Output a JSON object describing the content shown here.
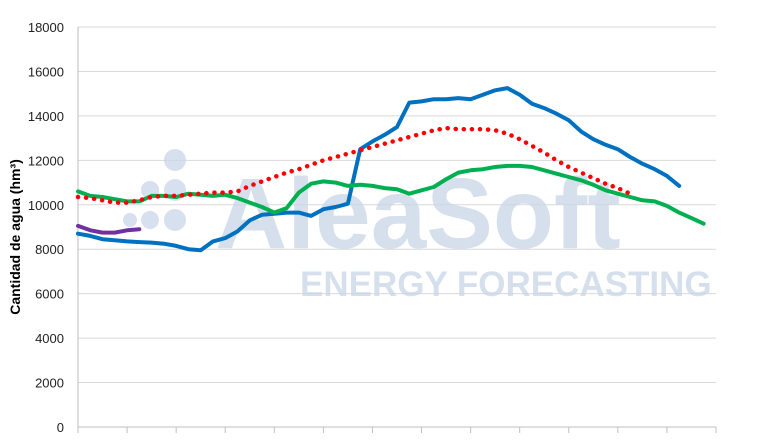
{
  "chart_data": {
    "type": "line",
    "title": "",
    "xlabel": "",
    "ylabel": "Cantidad de agua (hm³)",
    "ylim": [
      0,
      18000
    ],
    "yticks": [
      0,
      2000,
      4000,
      6000,
      8000,
      10000,
      12000,
      14000,
      16000,
      18000
    ],
    "x_points": 53,
    "x_tick_every": 4,
    "grid": "horizontal",
    "legend": "none",
    "watermark": {
      "main": "AleaSoft",
      "sub": "ENERGY FORECASTING"
    },
    "series": [
      {
        "color": "#0070c0",
        "style": "solid",
        "values": [
          8700,
          8600,
          8450,
          8400,
          8350,
          8320,
          8300,
          8250,
          8150,
          8000,
          7950,
          8350,
          8500,
          8800,
          9300,
          9550,
          9600,
          9650,
          9650,
          9500,
          9800,
          9900,
          10050,
          12500,
          12850,
          13150,
          13500,
          14600,
          14650,
          14750,
          14750,
          14800,
          14750,
          14950,
          15150,
          15250,
          14950,
          14550,
          14350,
          14100,
          13800,
          13300,
          12950,
          12700,
          12500,
          12150,
          11850,
          11600,
          11300,
          10850
        ]
      },
      {
        "color": "#00b050",
        "style": "solid",
        "values": [
          10600,
          10400,
          10350,
          10250,
          10150,
          10150,
          10400,
          10400,
          10350,
          10500,
          10450,
          10400,
          10450,
          10300,
          10100,
          9900,
          9650,
          9850,
          10550,
          10950,
          11050,
          11000,
          10850,
          10900,
          10850,
          10750,
          10700,
          10500,
          10650,
          10800,
          11150,
          11450,
          11550,
          11600,
          11700,
          11750,
          11750,
          11700,
          11550,
          11400,
          11250,
          11100,
          10900,
          10650,
          10500,
          10350,
          10200,
          10150,
          9950,
          9650,
          9400,
          9150
        ]
      },
      {
        "color": "#ff0000",
        "style": "dotted",
        "values": [
          10350,
          10300,
          10200,
          10100,
          10100,
          10200,
          10350,
          10400,
          10400,
          10450,
          10500,
          10550,
          10550,
          10600,
          10850,
          11050,
          11250,
          11450,
          11600,
          11800,
          12000,
          12150,
          12300,
          12450,
          12600,
          12750,
          12900,
          13050,
          13200,
          13350,
          13450,
          13400,
          13400,
          13400,
          13350,
          13200,
          12950,
          12650,
          12350,
          12000,
          11700,
          11450,
          11200,
          10950,
          10750,
          10500
        ]
      },
      {
        "color": "#7030a0",
        "style": "solid",
        "values": [
          9050,
          8850,
          8750,
          8750,
          8850,
          8900
        ]
      }
    ]
  }
}
